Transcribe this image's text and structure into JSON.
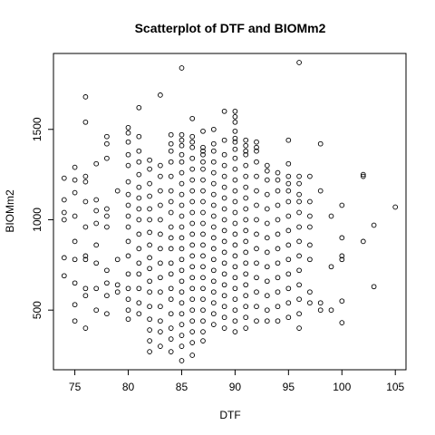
{
  "chart_data": {
    "type": "scatter",
    "title": "Scatterplot of DTF and BIOMm2",
    "xlabel": "DTF",
    "ylabel": "BIOMm2",
    "xlim": [
      73,
      106
    ],
    "ylim": [
      170,
      1920
    ],
    "xticks": [
      75,
      80,
      85,
      90,
      95,
      100,
      105
    ],
    "yticks": [
      500,
      1000,
      1500
    ],
    "grid": false,
    "legend": "none",
    "x": [
      74,
      74,
      74,
      74,
      74,
      74,
      75,
      75,
      75,
      75,
      75,
      75,
      75,
      75,
      75,
      76,
      76,
      76,
      76,
      76,
      76,
      76,
      76,
      76,
      76,
      76,
      77,
      77,
      77,
      77,
      77,
      77,
      77,
      77,
      78,
      78,
      78,
      78,
      78,
      78,
      78,
      78,
      78,
      78,
      79,
      79,
      79,
      79,
      80,
      80,
      80,
      80,
      80,
      80,
      80,
      80,
      80,
      80,
      80,
      80,
      80,
      80,
      80,
      80,
      80,
      81,
      81,
      81,
      81,
      81,
      81,
      81,
      81,
      81,
      81,
      81,
      81,
      81,
      81,
      81,
      81,
      82,
      82,
      82,
      82,
      82,
      82,
      82,
      82,
      82,
      82,
      82,
      82,
      82,
      82,
      82,
      82,
      82,
      83,
      83,
      83,
      83,
      83,
      83,
      83,
      83,
      83,
      83,
      83,
      83,
      83,
      83,
      83,
      84,
      84,
      84,
      84,
      84,
      84,
      84,
      84,
      84,
      84,
      84,
      84,
      84,
      84,
      84,
      84,
      84,
      84,
      84,
      85,
      85,
      85,
      85,
      85,
      85,
      85,
      85,
      85,
      85,
      85,
      85,
      85,
      85,
      85,
      85,
      85,
      85,
      85,
      85,
      85,
      85,
      85,
      85,
      86,
      86,
      86,
      86,
      86,
      86,
      86,
      86,
      86,
      86,
      86,
      86,
      86,
      86,
      86,
      86,
      86,
      86,
      86,
      86,
      86,
      86,
      86,
      87,
      87,
      87,
      87,
      87,
      87,
      87,
      87,
      87,
      87,
      87,
      87,
      87,
      87,
      87,
      87,
      87,
      87,
      87,
      87,
      87,
      87,
      88,
      88,
      88,
      88,
      88,
      88,
      88,
      88,
      88,
      88,
      88,
      88,
      88,
      88,
      88,
      88,
      88,
      88,
      88,
      89,
      89,
      89,
      89,
      89,
      89,
      89,
      89,
      89,
      89,
      89,
      89,
      89,
      89,
      89,
      89,
      89,
      89,
      89,
      90,
      90,
      90,
      90,
      90,
      90,
      90,
      90,
      90,
      90,
      90,
      90,
      90,
      90,
      90,
      90,
      90,
      90,
      90,
      90,
      90,
      90,
      90,
      90,
      91,
      91,
      91,
      91,
      91,
      91,
      91,
      91,
      91,
      91,
      91,
      91,
      91,
      91,
      91,
      91,
      91,
      91,
      91,
      91,
      92,
      92,
      92,
      92,
      92,
      92,
      92,
      92,
      92,
      92,
      92,
      92,
      92,
      92,
      92,
      93,
      93,
      93,
      93,
      93,
      93,
      93,
      93,
      93,
      93,
      93,
      93,
      93,
      94,
      94,
      94,
      94,
      94,
      94,
      94,
      94,
      94,
      94,
      94,
      94,
      95,
      95,
      95,
      95,
      95,
      95,
      95,
      95,
      95,
      95,
      95,
      95,
      95,
      95,
      96,
      96,
      96,
      96,
      96,
      96,
      96,
      96,
      96,
      96,
      96,
      96,
      96,
      96,
      97,
      97,
      97,
      97,
      97,
      97,
      97,
      97,
      98,
      98,
      98,
      98,
      99,
      99,
      99,
      100,
      100,
      100,
      100,
      100,
      100,
      102,
      102,
      102,
      103,
      103,
      105
    ],
    "y": [
      690,
      790,
      1000,
      1040,
      1110,
      1230,
      440,
      530,
      650,
      780,
      880,
      1020,
      1150,
      1220,
      1290,
      400,
      580,
      620,
      780,
      800,
      960,
      1100,
      1210,
      1240,
      1540,
      1680,
      500,
      620,
      760,
      860,
      980,
      1050,
      1110,
      1310,
      480,
      580,
      650,
      720,
      960,
      1020,
      1060,
      1340,
      1420,
      1460,
      600,
      640,
      780,
      1160,
      450,
      500,
      560,
      620,
      700,
      800,
      880,
      960,
      1020,
      1080,
      1140,
      1210,
      1300,
      1360,
      1430,
      1480,
      1510,
      480,
      540,
      620,
      700,
      760,
      840,
      920,
      1000,
      1060,
      1120,
      1180,
      1250,
      1320,
      1380,
      1460,
      1620,
      270,
      330,
      390,
      450,
      520,
      600,
      660,
      730,
      790,
      860,
      930,
      1000,
      1060,
      1130,
      1200,
      1280,
      1330,
      300,
      380,
      440,
      520,
      600,
      680,
      760,
      840,
      920,
      1000,
      1080,
      1160,
      1240,
      1300,
      1690,
      270,
      340,
      400,
      480,
      560,
      620,
      700,
      760,
      840,
      900,
      960,
      1040,
      1100,
      1160,
      1240,
      1320,
      1380,
      1420,
      1470,
      220,
      300,
      360,
      420,
      480,
      540,
      600,
      660,
      720,
      780,
      840,
      900,
      960,
      1020,
      1080,
      1140,
      1200,
      1260,
      1320,
      1360,
      1410,
      1440,
      1470,
      1840,
      250,
      320,
      380,
      440,
      500,
      560,
      620,
      680,
      740,
      800,
      860,
      920,
      980,
      1040,
      1100,
      1160,
      1220,
      1280,
      1340,
      1400,
      1430,
      1460,
      1560,
      330,
      380,
      440,
      500,
      560,
      620,
      680,
      740,
      800,
      860,
      920,
      980,
      1040,
      1100,
      1160,
      1220,
      1280,
      1320,
      1360,
      1380,
      1400,
      1490,
      420,
      480,
      540,
      600,
      660,
      720,
      780,
      840,
      900,
      960,
      1020,
      1080,
      1140,
      1200,
      1260,
      1320,
      1380,
      1420,
      1500,
      400,
      460,
      520,
      580,
      640,
      700,
      760,
      820,
      880,
      940,
      1000,
      1060,
      1120,
      1180,
      1240,
      1300,
      1360,
      1440,
      1600,
      380,
      440,
      500,
      560,
      620,
      680,
      740,
      800,
      860,
      920,
      980,
      1040,
      1100,
      1160,
      1220,
      1280,
      1340,
      1390,
      1430,
      1450,
      1490,
      1540,
      1570,
      1600,
      400,
      460,
      520,
      580,
      640,
      700,
      760,
      820,
      880,
      940,
      1000,
      1060,
      1120,
      1180,
      1240,
      1300,
      1360,
      1380,
      1410,
      1440,
      440,
      520,
      600,
      680,
      760,
      840,
      920,
      1000,
      1080,
      1160,
      1240,
      1320,
      1380,
      1400,
      1430,
      440,
      500,
      580,
      660,
      740,
      820,
      900,
      980,
      1060,
      1140,
      1220,
      1270,
      1300,
      440,
      520,
      600,
      680,
      760,
      840,
      920,
      1000,
      1080,
      1160,
      1220,
      1260,
      460,
      540,
      620,
      700,
      780,
      860,
      940,
      1020,
      1100,
      1160,
      1200,
      1240,
      1310,
      1440,
      400,
      480,
      560,
      640,
      720,
      800,
      880,
      960,
      1040,
      1100,
      1140,
      1200,
      1240,
      1870,
      540,
      600,
      780,
      860,
      960,
      1020,
      1100,
      1240,
      500,
      540,
      1160,
      1420,
      500,
      740,
      1020,
      430,
      550,
      780,
      800,
      900,
      1080,
      880,
      1240,
      1250,
      630,
      970,
      1070
    ]
  }
}
